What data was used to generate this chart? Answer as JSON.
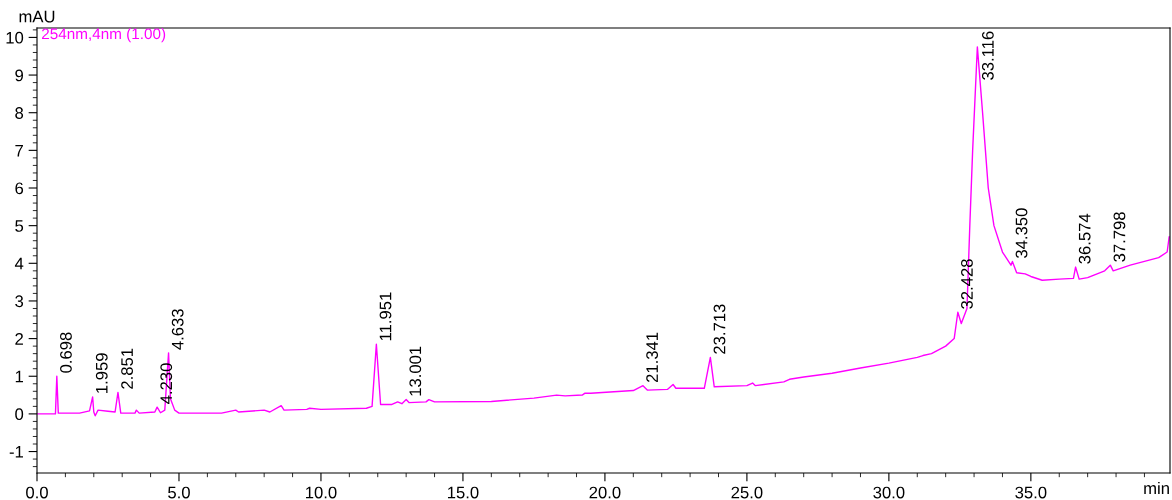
{
  "chart_data": {
    "type": "line",
    "xlabel": "min",
    "ylabel": "mAU",
    "xlim": [
      0,
      39.9
    ],
    "ylim": [
      -1.57,
      10.25
    ],
    "xticks": [
      {
        "value": 0,
        "label": "0.0"
      },
      {
        "value": 5,
        "label": "5.0"
      },
      {
        "value": 10,
        "label": "10.0"
      },
      {
        "value": 15,
        "label": "15.0"
      },
      {
        "value": 20,
        "label": "20.0"
      },
      {
        "value": 25,
        "label": "25.0"
      },
      {
        "value": 30,
        "label": "30.0"
      },
      {
        "value": 35,
        "label": "35.0"
      }
    ],
    "yticks": [
      -1,
      0,
      1,
      2,
      3,
      4,
      5,
      6,
      7,
      8,
      9,
      10
    ],
    "grid": false,
    "marker": "none",
    "line_style": "solid",
    "series": [
      {
        "name": "254nm,4nm (1.00)",
        "color": "#ff00ff",
        "x": [
          0,
          0.65,
          0.698,
          0.75,
          1.5,
          1.85,
          1.959,
          2.0,
          2.05,
          2.15,
          2.5,
          2.75,
          2.851,
          2.95,
          3.45,
          3.5,
          3.6,
          4.15,
          4.23,
          4.35,
          4.5,
          4.633,
          4.7,
          4.85,
          5.0,
          6.5,
          7.0,
          7.1,
          8.0,
          8.2,
          8.6,
          8.7,
          9.5,
          9.6,
          10.0,
          11.6,
          11.8,
          11.951,
          12.1,
          12.5,
          12.7,
          12.85,
          13.001,
          13.1,
          13.7,
          13.8,
          14.0,
          16.0,
          17.5,
          18.3,
          18.6,
          19.2,
          19.3,
          19.5,
          21.0,
          21.341,
          21.5,
          22.2,
          22.4,
          22.5,
          23.5,
          23.713,
          23.85,
          25.0,
          25.2,
          25.3,
          26.3,
          26.5,
          27.0,
          28.0,
          29.0,
          30.0,
          31.0,
          31.2,
          31.5,
          32.0,
          32.3,
          32.428,
          32.55,
          32.75,
          32.85,
          32.95,
          33.116,
          33.3,
          33.5,
          33.7,
          34.0,
          34.3,
          34.35,
          34.5,
          34.8,
          35.0,
          35.4,
          36.0,
          36.5,
          36.574,
          36.7,
          37.0,
          37.6,
          37.798,
          37.9,
          38.5,
          39.0,
          39.5,
          39.8,
          39.87
        ],
        "values": [
          0,
          0,
          1.0,
          0.02,
          0.02,
          0.08,
          0.45,
          0.05,
          -0.05,
          0.1,
          0.07,
          0.05,
          0.57,
          0.02,
          0.02,
          0.1,
          0.02,
          0.05,
          0.18,
          0.03,
          0.1,
          1.62,
          0.4,
          0.1,
          0.02,
          0.02,
          0.1,
          0.05,
          0.1,
          0.05,
          0.22,
          0.1,
          0.12,
          0.15,
          0.12,
          0.15,
          0.2,
          1.85,
          0.25,
          0.25,
          0.32,
          0.27,
          0.38,
          0.3,
          0.32,
          0.38,
          0.32,
          0.33,
          0.42,
          0.5,
          0.48,
          0.5,
          0.55,
          0.55,
          0.62,
          0.75,
          0.63,
          0.65,
          0.78,
          0.68,
          0.68,
          1.5,
          0.72,
          0.75,
          0.82,
          0.75,
          0.85,
          0.92,
          0.98,
          1.08,
          1.22,
          1.35,
          1.5,
          1.55,
          1.6,
          1.8,
          2.0,
          2.7,
          2.4,
          2.8,
          5.0,
          7.0,
          9.75,
          8.0,
          6.0,
          5.0,
          4.3,
          3.95,
          4.05,
          3.75,
          3.72,
          3.65,
          3.55,
          3.58,
          3.6,
          3.9,
          3.58,
          3.62,
          3.8,
          3.95,
          3.8,
          3.95,
          4.05,
          4.15,
          4.3,
          4.7
        ]
      }
    ],
    "annotations": [
      {
        "text": "0.698",
        "x": 0.698,
        "y": 1.0
      },
      {
        "text": "1.959",
        "x": 1.959,
        "y": 0.45
      },
      {
        "text": "2.851",
        "x": 2.851,
        "y": 0.57
      },
      {
        "text": "4.230",
        "x": 4.23,
        "y": 0.18
      },
      {
        "text": "4.633",
        "x": 4.633,
        "y": 1.62
      },
      {
        "text": "11.951",
        "x": 11.951,
        "y": 1.85
      },
      {
        "text": "13.001",
        "x": 13.001,
        "y": 0.38
      },
      {
        "text": "21.341",
        "x": 21.341,
        "y": 0.75
      },
      {
        "text": "23.713",
        "x": 23.713,
        "y": 1.5
      },
      {
        "text": "32.428",
        "x": 32.428,
        "y": 2.7
      },
      {
        "text": "33.116",
        "x": 33.116,
        "y": 9.75
      },
      {
        "text": "34.350",
        "x": 34.35,
        "y": 4.05
      },
      {
        "text": "36.574",
        "x": 36.574,
        "y": 3.9
      },
      {
        "text": "37.798",
        "x": 37.798,
        "y": 3.95
      }
    ]
  }
}
